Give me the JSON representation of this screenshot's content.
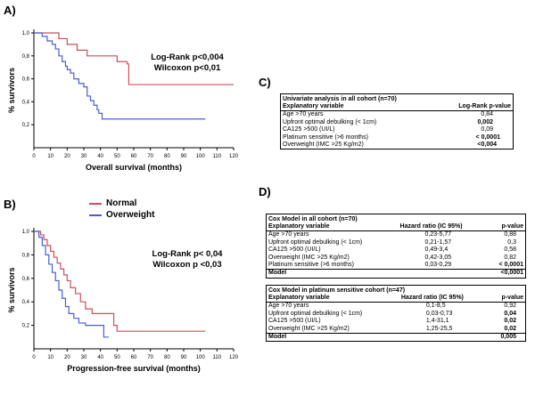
{
  "panels": {
    "a": "A)",
    "b": "B)",
    "c": "C)",
    "d": "D)"
  },
  "colors": {
    "normal": "#c8505a",
    "overweight": "#4a5ed4"
  },
  "legend": [
    {
      "name": "Normal",
      "color": "#c8505a"
    },
    {
      "name": "Overweight",
      "color": "#4a5ed4"
    }
  ],
  "chart_data": [
    {
      "type": "line",
      "xlabel": "Overall survival (months)",
      "ylabel": "% survivors",
      "xlim": [
        0,
        120
      ],
      "ylim": [
        0,
        1.0
      ],
      "xticks": [
        "0",
        "10",
        "20",
        "30",
        "40",
        "50",
        "60",
        "70",
        "80",
        "90",
        "100",
        "110",
        "120"
      ],
      "yticks": [
        "0,2",
        "0,4",
        "0,6",
        "0,8",
        "1,0"
      ],
      "annotations": [
        "Log-Rank p<0,004",
        "Wilcoxon p<0,01"
      ],
      "series": [
        {
          "name": "Normal",
          "color": "#c8505a",
          "x": [
            0,
            14,
            15,
            16,
            20,
            22,
            26,
            29,
            32,
            40,
            50,
            53,
            56,
            57,
            103,
            120
          ],
          "y": [
            1.0,
            1.0,
            0.95,
            0.95,
            0.9,
            0.9,
            0.85,
            0.85,
            0.8,
            0.8,
            0.75,
            0.75,
            0.73,
            0.55,
            0.55,
            0.55
          ]
        },
        {
          "name": "Overweight",
          "color": "#4a5ed4",
          "x": [
            0,
            5,
            8,
            11,
            13,
            15,
            17,
            19,
            20,
            22,
            24,
            27,
            30,
            32,
            34,
            36,
            38,
            39,
            41,
            103
          ],
          "y": [
            1.0,
            0.97,
            0.93,
            0.9,
            0.86,
            0.8,
            0.75,
            0.71,
            0.68,
            0.65,
            0.6,
            0.56,
            0.53,
            0.45,
            0.41,
            0.37,
            0.33,
            0.3,
            0.25,
            0.25
          ]
        }
      ]
    },
    {
      "type": "line",
      "xlabel": "Progression-free survival (months)",
      "ylabel": "% survivors",
      "xlim": [
        0,
        120
      ],
      "ylim": [
        0,
        1.0
      ],
      "xticks": [
        "0",
        "10",
        "20",
        "30",
        "40",
        "50",
        "60",
        "70",
        "80",
        "90",
        "100",
        "110",
        "120"
      ],
      "yticks": [
        "0,2",
        "0,4",
        "0,6",
        "0,8",
        "1,0"
      ],
      "annotations": [
        "Log-Rank p< 0,04",
        "Wilcoxon p <0,03"
      ],
      "series": [
        {
          "name": "Normal",
          "color": "#c8505a",
          "x": [
            0,
            4,
            6,
            8,
            10,
            12,
            14,
            16,
            18,
            20,
            22,
            25,
            28,
            31,
            35,
            40,
            45,
            48,
            50,
            103
          ],
          "y": [
            1.0,
            0.97,
            0.93,
            0.88,
            0.83,
            0.78,
            0.73,
            0.68,
            0.63,
            0.58,
            0.52,
            0.47,
            0.4,
            0.34,
            0.3,
            0.3,
            0.3,
            0.2,
            0.15,
            0.15
          ]
        },
        {
          "name": "Overweight",
          "color": "#4a5ed4",
          "x": [
            0,
            3,
            5,
            7,
            9,
            11,
            13,
            15,
            17,
            19,
            21,
            24,
            27,
            31,
            35,
            41,
            42,
            45
          ],
          "y": [
            1.0,
            0.95,
            0.88,
            0.8,
            0.72,
            0.65,
            0.58,
            0.5,
            0.43,
            0.36,
            0.3,
            0.26,
            0.22,
            0.2,
            0.2,
            0.2,
            0.1,
            0.1
          ]
        }
      ]
    }
  ],
  "table_c": {
    "title": "Univariate analysis in all cohort (n=70)",
    "header": [
      "Explanatory variable",
      "Log-Rank p-value"
    ],
    "rows": [
      [
        "Age >70 years",
        "0,84"
      ],
      [
        "Upfront optimal debulking (< 1cm)",
        "0,002"
      ],
      [
        "CA125 >500 (UI/L)",
        "0,09"
      ],
      [
        "Platinum sensitive (>6 months)",
        "< 0,0001"
      ],
      [
        "Overweight (IMC >25 Kg/m2)",
        "<0,004"
      ]
    ]
  },
  "table_d1": {
    "title": "Cox Model in all cohort (n=70)",
    "header": [
      "Explanatory variable",
      "Hazard  ratio (IC 95%)",
      "p-value"
    ],
    "rows": [
      [
        "Age >70 years",
        "0,23-5,77",
        "0,88"
      ],
      [
        "Upfront optimal debulking (< 1cm)",
        "0,21-1,57",
        "0,3"
      ],
      [
        "CA125 >500 (UI/L)",
        "0,49-3,4",
        "0,58"
      ],
      [
        "Overweight (IMC >25 Kg/m2)",
        "0,42-3,05",
        "0,82"
      ],
      [
        "Platinum sensitive (>6 months)",
        "0,03-0,29",
        "< 0,0001"
      ]
    ],
    "model": [
      "Model",
      "",
      "<0,0001"
    ]
  },
  "table_d2": {
    "title": "Cox Model in platinum sensitive cohort (n=47)",
    "header": [
      "Explanatory variable",
      "Hazard  ratio (IC 95%)",
      "p-value"
    ],
    "rows": [
      [
        "Age >70 years",
        "0,1-8,5",
        "0,92"
      ],
      [
        "Upfront optimal debulking (< 1cm)",
        "0,03-0,73",
        "0,04"
      ],
      [
        "CA125 >500 (UI/L)",
        "1,4-31,1",
        "0,02"
      ],
      [
        "Overweight (IMC >25 Kg/m2)",
        "1,25-25,5",
        "0,02"
      ]
    ],
    "model": [
      "Model",
      "",
      "0,005"
    ]
  }
}
